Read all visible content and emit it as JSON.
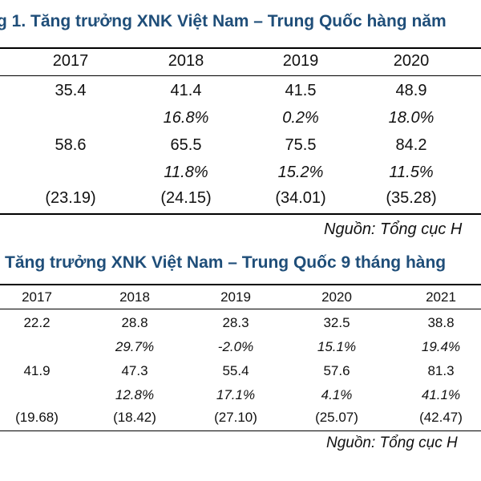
{
  "table1": {
    "title": "g 1. Tăng trưởng XNK Việt Nam – Trung Quốc hàng năm",
    "years": [
      "2017",
      "2018",
      "2019",
      "2020"
    ],
    "rows": [
      {
        "style": "normal",
        "values": [
          "35.4",
          "41.4",
          "41.5",
          "48.9"
        ]
      },
      {
        "style": "italic",
        "values": [
          "",
          "16.8%",
          "0.2%",
          "18.0%"
        ]
      },
      {
        "style": "normal",
        "values": [
          "58.6",
          "65.5",
          "75.5",
          "84.2"
        ]
      },
      {
        "style": "italic",
        "values": [
          "",
          "11.8%",
          "15.2%",
          "11.5%"
        ]
      },
      {
        "style": "normal",
        "values": [
          "(23.19)",
          "(24.15)",
          "(34.01)",
          "(35.28)"
        ]
      }
    ],
    "source": "Nguồn: Tổng cục H"
  },
  "table2": {
    "title": "Tăng trưởng XNK Việt Nam – Trung Quốc 9 tháng hàng",
    "years": [
      "2017",
      "2018",
      "2019",
      "2020",
      "2021"
    ],
    "rows": [
      {
        "style": "normal",
        "values": [
          "22.2",
          "28.8",
          "28.3",
          "32.5",
          "38.8"
        ]
      },
      {
        "style": "italic",
        "values": [
          "",
          "29.7%",
          "-2.0%",
          "15.1%",
          "19.4%"
        ]
      },
      {
        "style": "normal",
        "values": [
          "41.9",
          "47.3",
          "55.4",
          "57.6",
          "81.3"
        ]
      },
      {
        "style": "italic",
        "values": [
          "",
          "12.8%",
          "17.1%",
          "4.1%",
          "41.1%"
        ]
      },
      {
        "style": "normal",
        "values": [
          "(19.68)",
          "(18.42)",
          "(27.10)",
          "(25.07)",
          "(42.47)"
        ]
      }
    ],
    "source": "Nguồn: Tổng cục H"
  }
}
